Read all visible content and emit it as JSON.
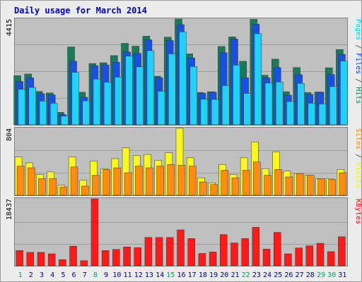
{
  "chart_data": {
    "type": "bar",
    "title": "Daily usage for March 2014",
    "categories": [
      "1",
      "2",
      "3",
      "4",
      "5",
      "6",
      "7",
      "8",
      "9",
      "10",
      "11",
      "12",
      "13",
      "14",
      "15",
      "16",
      "17",
      "18",
      "19",
      "20",
      "21",
      "22",
      "23",
      "24",
      "25",
      "26",
      "27",
      "28",
      "29",
      "30",
      "31"
    ],
    "weekend_days": [
      "1",
      "8",
      "15",
      "22",
      "29",
      "30"
    ],
    "panels": [
      {
        "max_label": "4415",
        "ymax": 4415,
        "legend": [
          {
            "text": "Pages",
            "color": "#00c8ff"
          },
          {
            "text": " / ",
            "color": "#404040"
          },
          {
            "text": "Files",
            "color": "#0040ff"
          },
          {
            "text": " / ",
            "color": "#404040"
          },
          {
            "text": "Hits",
            "color": "#00805c"
          }
        ],
        "series": [
          {
            "name": "Hits",
            "color": "#1a7a5a",
            "values": [
              2050,
              2120,
              1390,
              1330,
              520,
              3250,
              1360,
              2560,
              2590,
              2890,
              3400,
              3280,
              3700,
              2030,
              3660,
              4415,
              2960,
              1350,
              1380,
              3270,
              3670,
              2650,
              4405,
              2070,
              2740,
              1380,
              2390,
              1350,
              1370,
              2380,
              3140
            ]
          },
          {
            "name": "Files",
            "color": "#1a50e0",
            "values": [
              1810,
              1960,
              1300,
              1250,
              430,
              2650,
              1150,
              2460,
              2500,
              2610,
              3040,
              2980,
              3550,
              1970,
              3520,
              4180,
              2790,
              1320,
              1360,
              3010,
              3580,
              1960,
              4200,
              1960,
              2390,
              1240,
              2090,
              1270,
              1360,
              2100,
              2940
            ]
          },
          {
            "name": "Pages",
            "color": "#22d0f8",
            "values": [
              1480,
              1560,
              990,
              900,
              360,
              2190,
              1000,
              1910,
              1780,
              1990,
              2870,
              2420,
              3100,
              1400,
              2960,
              3880,
              2430,
              1070,
              1060,
              1640,
              2490,
              1310,
              3800,
              1740,
              1790,
              970,
              1730,
              900,
              870,
              1600,
              2660
            ]
          }
        ]
      },
      {
        "max_label": "804",
        "ymax": 804,
        "legend": [
          {
            "text": "Sites",
            "color": "#ff8a00"
          },
          {
            "text": " / ",
            "color": "#404040"
          },
          {
            "text": "Visits",
            "color": "#f0f000"
          }
        ],
        "series": [
          {
            "name": "Visits",
            "color": "#f8f820",
            "values": [
              460,
              390,
              250,
              280,
              120,
              460,
              180,
              410,
              320,
              440,
              570,
              480,
              490,
              420,
              510,
              804,
              450,
              210,
              150,
              370,
              250,
              450,
              640,
              320,
              520,
              290,
              260,
              240,
              200,
              200,
              310
            ]
          },
          {
            "name": "Sites",
            "color": "#ff8c10",
            "values": [
              350,
              330,
              200,
              200,
              100,
              340,
              110,
              240,
              310,
              330,
              270,
              350,
              330,
              350,
              370,
              360,
              350,
              160,
              130,
              300,
              210,
              300,
              400,
              240,
              310,
              220,
              260,
              240,
              200,
              190,
              270
            ]
          }
        ]
      },
      {
        "max_label": "18437",
        "ymax": 18437,
        "legend": [
          {
            "text": "KBytes",
            "color": "#ff0000"
          }
        ],
        "series": [
          {
            "name": "KBytes",
            "color": "#ff1a1a",
            "values": [
              4200,
              3700,
              3700,
              3300,
              1700,
              5400,
              1400,
              18437,
              4200,
              4500,
              5200,
              5000,
              7800,
              7800,
              7800,
              9900,
              7500,
              3400,
              3800,
              8600,
              6300,
              7500,
              10600,
              4600,
              9200,
              3300,
              4900,
              5500,
              6200,
              3900,
              8000
            ]
          }
        ]
      }
    ]
  }
}
